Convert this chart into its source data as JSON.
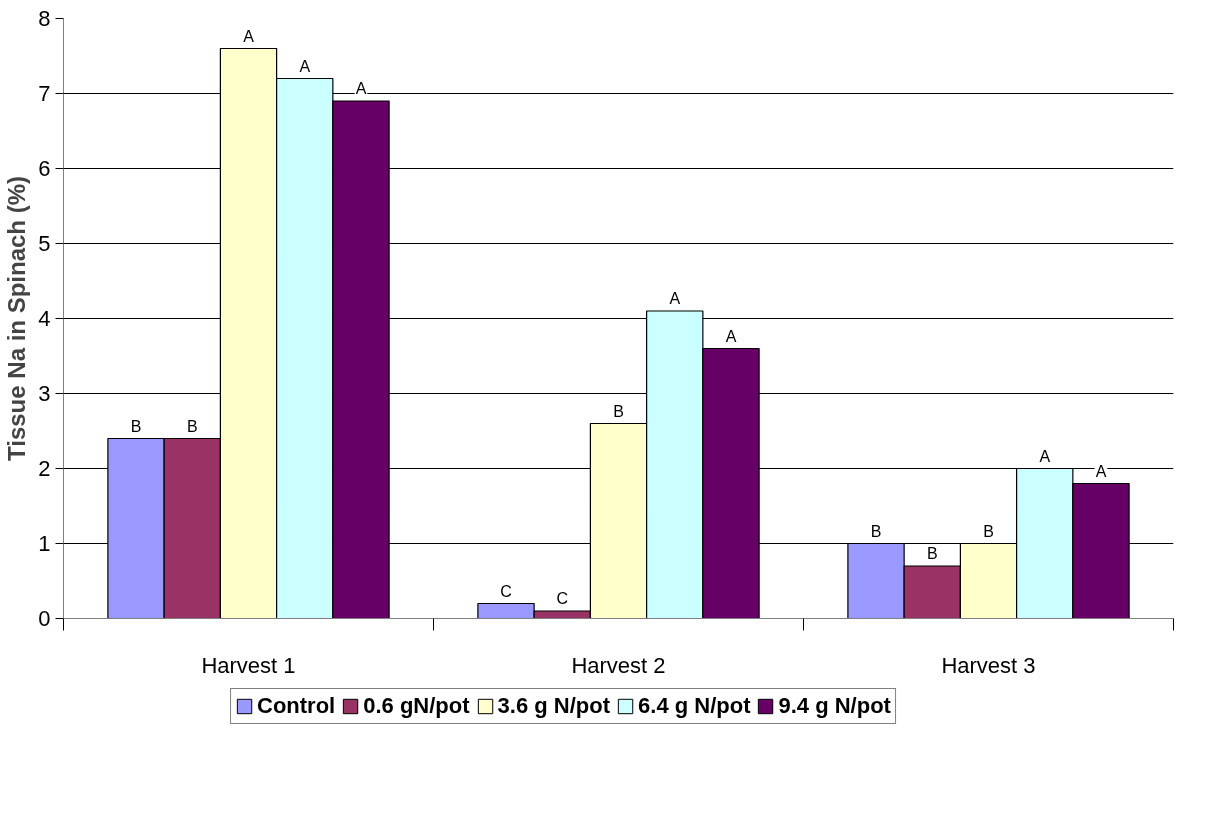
{
  "chart_data": {
    "type": "bar",
    "ylabel": "Tissue Na in Spinach (%)",
    "categories": [
      "Harvest 1",
      "Harvest 2",
      "Harvest 3"
    ],
    "ylim": [
      0,
      8
    ],
    "yticks": [
      0,
      1,
      2,
      3,
      4,
      5,
      6,
      7,
      8
    ],
    "grid": "y",
    "legend": "bottom",
    "series": [
      {
        "name": "Control",
        "color": "#9999ff",
        "values": [
          2.4,
          0.2,
          1.0
        ],
        "value_labels": [
          "B",
          "C",
          "B"
        ]
      },
      {
        "name": "0.6 gN/pot",
        "color": "#993366",
        "values": [
          2.4,
          0.1,
          0.7
        ],
        "value_labels": [
          "B",
          "C",
          "B"
        ]
      },
      {
        "name": "3.6 g N/pot",
        "color": "#ffffcc",
        "values": [
          7.6,
          2.6,
          1.0
        ],
        "value_labels": [
          "A",
          "B",
          "B"
        ]
      },
      {
        "name": "6.4 g N/pot",
        "color": "#ccffff",
        "values": [
          7.2,
          4.1,
          2.0
        ],
        "value_labels": [
          "A",
          "A",
          "A"
        ]
      },
      {
        "name": "9.4 g N/pot",
        "color": "#660066",
        "values": [
          6.9,
          3.6,
          1.8
        ],
        "value_labels": [
          "A",
          "A",
          "A"
        ]
      }
    ]
  }
}
